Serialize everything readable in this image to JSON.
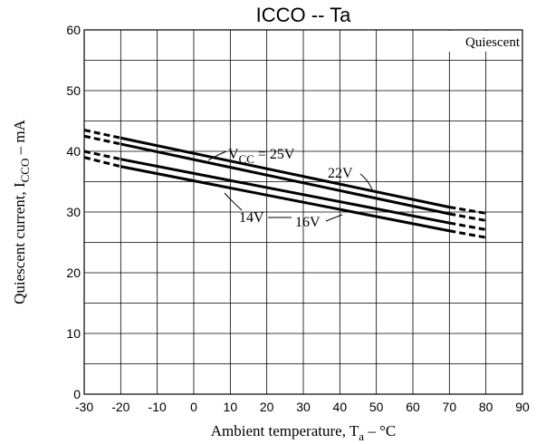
{
  "chart_data": {
    "type": "line",
    "title": "ICCO -- Ta",
    "xlabel": "Ambient temperature, Ta – °C",
    "ylabel": "Quiescent current, ICCO – mA",
    "xlim": [
      -30,
      90
    ],
    "ylim": [
      0,
      60
    ],
    "x_ticks": [
      -30,
      -20,
      -10,
      0,
      10,
      20,
      30,
      40,
      50,
      60,
      70,
      80,
      90
    ],
    "y_ticks": [
      0,
      10,
      20,
      30,
      40,
      50,
      60
    ],
    "grid": true,
    "annotation_box": "Quiescent",
    "solid_range": [
      -20,
      70
    ],
    "dashed_ranges": [
      [
        -30,
        -20
      ],
      [
        70,
        80
      ]
    ],
    "series": [
      {
        "name": "VCC = 25V",
        "x": [
          -30,
          -20,
          70,
          80
        ],
        "y": [
          43.5,
          42.2,
          30.8,
          29.8
        ]
      },
      {
        "name": "22V",
        "x": [
          -30,
          -20,
          70,
          80
        ],
        "y": [
          42.5,
          41.2,
          29.7,
          28.6
        ]
      },
      {
        "name": "16V",
        "x": [
          -30,
          -20,
          70,
          80
        ],
        "y": [
          40,
          38.7,
          28.2,
          27.1
        ]
      },
      {
        "name": "14V",
        "x": [
          -30,
          -20,
          70,
          80
        ],
        "y": [
          39,
          37.5,
          26.9,
          25.8
        ]
      }
    ],
    "labels": {
      "v25_main": "V",
      "v25_sub": "CC",
      "v25_value": " = 25V",
      "v22": "22V",
      "v16": "16V",
      "v14": "14V",
      "xlabel_main": "Ambient temperature, T",
      "xlabel_sub": "a",
      "xlabel_tail": " – °C",
      "ylabel_main": "Quiescent current, I",
      "ylabel_sub": "CCO",
      "ylabel_tail": " – mA"
    }
  }
}
